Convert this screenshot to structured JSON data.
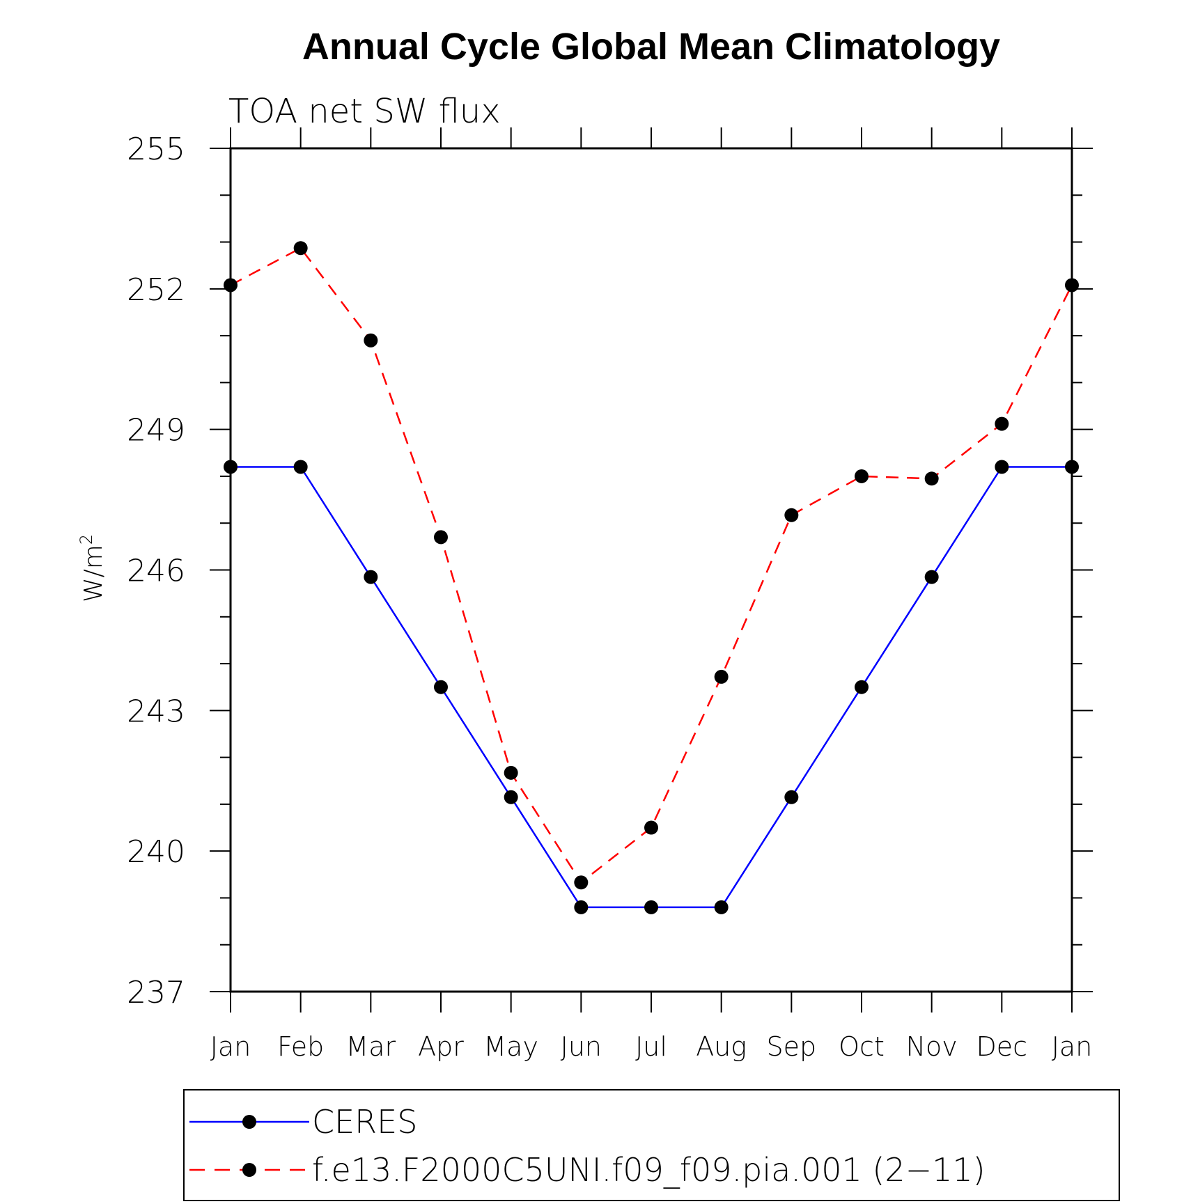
{
  "chart_data": {
    "type": "line",
    "title": "Annual Cycle Global Mean Climatology",
    "subtitle": "TOA net SW flux",
    "ylabel": "W/m",
    "ylabel_sup": "2",
    "xlabel": "",
    "categories": [
      "Jan",
      "Feb",
      "Mar",
      "Apr",
      "May",
      "Jun",
      "Jul",
      "Aug",
      "Sep",
      "Oct",
      "Nov",
      "Dec",
      "Jan"
    ],
    "ylim": [
      237,
      255
    ],
    "yticks": [
      237,
      240,
      243,
      246,
      249,
      252,
      255
    ],
    "series": [
      {
        "name": "CERES",
        "color": "#0000ff",
        "dash": "solid",
        "marker": "circle",
        "values": [
          248.2,
          248.2,
          245.85,
          243.5,
          241.15,
          238.8,
          238.8,
          238.8,
          241.15,
          243.5,
          245.85,
          248.2,
          248.2
        ]
      },
      {
        "name": "f.e13.F2000C5UNI.f09_f09.pia.001 (2−11)",
        "color": "#ff0000",
        "dash": "dashed",
        "marker": "circle",
        "values": [
          252.08,
          252.87,
          250.9,
          246.7,
          241.67,
          239.33,
          240.5,
          243.72,
          247.17,
          248.0,
          247.95,
          249.12,
          252.08
        ]
      }
    ],
    "legend_position": "bottom"
  }
}
